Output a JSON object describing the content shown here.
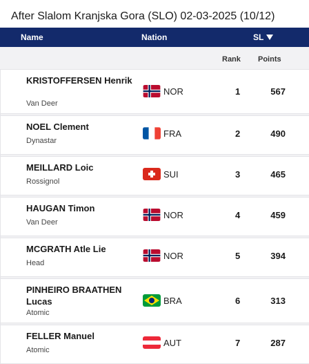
{
  "title": "After Slalom Kranjska Gora (SLO) 02-03-2025 (10/12)",
  "header": {
    "name": "Name",
    "nation": "Nation",
    "discipline": "SL"
  },
  "subheader": {
    "rank": "Rank",
    "points": "Points"
  },
  "rows": [
    {
      "name": "KRISTOFFERSEN Henrik",
      "sponsor": "Van Deer",
      "nation": "NOR",
      "flag_icon": "norway-flag-icon",
      "rank": "1",
      "points": "567"
    },
    {
      "name": "NOEL Clement",
      "sponsor": "Dynastar",
      "nation": "FRA",
      "flag_icon": "france-flag-icon",
      "rank": "2",
      "points": "490"
    },
    {
      "name": "MEILLARD Loic",
      "sponsor": "Rossignol",
      "nation": "SUI",
      "flag_icon": "switzerland-flag-icon",
      "rank": "3",
      "points": "465"
    },
    {
      "name": "HAUGAN Timon",
      "sponsor": "Van Deer",
      "nation": "NOR",
      "flag_icon": "norway-flag-icon",
      "rank": "4",
      "points": "459"
    },
    {
      "name": "MCGRATH Atle Lie",
      "sponsor": "Head",
      "nation": "NOR",
      "flag_icon": "norway-flag-icon",
      "rank": "5",
      "points": "394"
    },
    {
      "name": "PINHEIRO BRAATHEN Lucas",
      "sponsor": "Atomic",
      "nation": "BRA",
      "flag_icon": "brazil-flag-icon",
      "rank": "6",
      "points": "313"
    },
    {
      "name": "FELLER Manuel",
      "sponsor": "Atomic",
      "nation": "AUT",
      "flag_icon": "austria-flag-icon",
      "rank": "7",
      "points": "287"
    }
  ]
}
